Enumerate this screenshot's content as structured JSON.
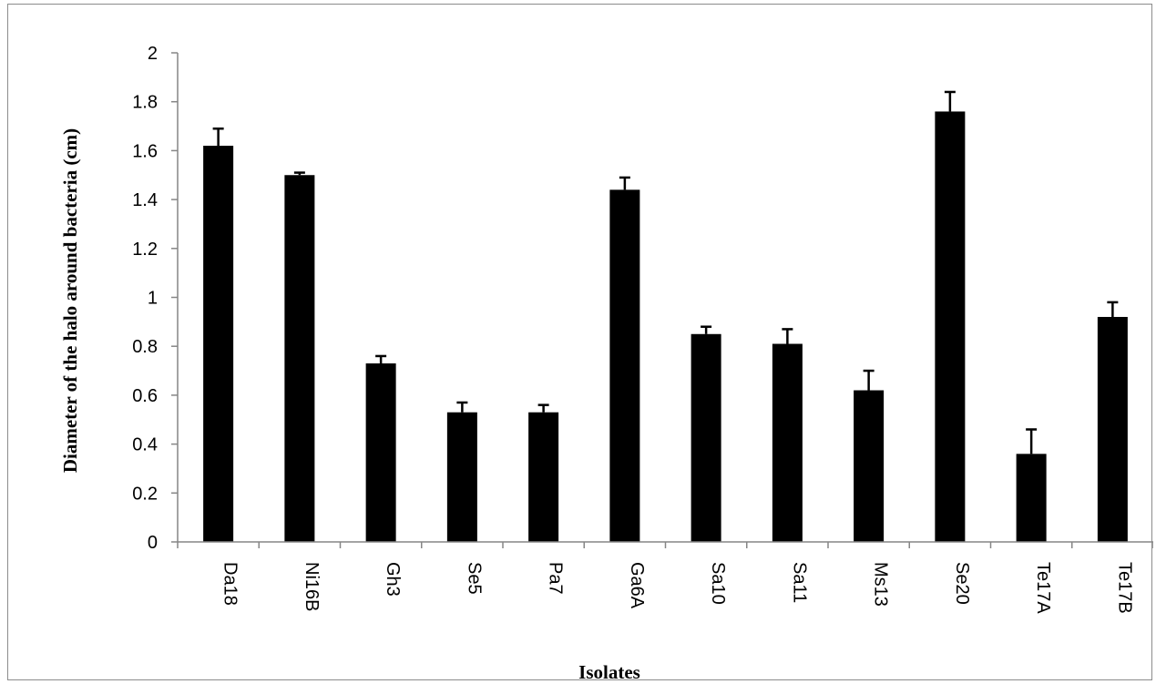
{
  "chart_data": {
    "type": "bar",
    "title": "",
    "xlabel": "Isolates",
    "ylabel": "Diameter of the halo around bacteria (cm)",
    "ylim": [
      0,
      2
    ],
    "yticks": [
      "0",
      "0.2",
      "0.4",
      "0.6",
      "0.8",
      "1",
      "1.2",
      "1.4",
      "1.6",
      "1.8",
      "2"
    ],
    "categories": [
      "Da18",
      "Ni16B",
      "Gh3",
      "Se5",
      "Pa7",
      "Ga6A",
      "Sa10",
      "Sa11",
      "Ms13",
      "Se20",
      "Te17A",
      "Te17B"
    ],
    "values": [
      1.62,
      1.5,
      0.73,
      0.53,
      0.53,
      1.44,
      0.85,
      0.81,
      0.62,
      1.76,
      0.36,
      0.92
    ],
    "error_bars": [
      0.07,
      0.01,
      0.03,
      0.04,
      0.03,
      0.05,
      0.03,
      0.06,
      0.08,
      0.08,
      0.1,
      0.06
    ],
    "grid": false,
    "legend": "none",
    "bar_color": "#000000"
  }
}
